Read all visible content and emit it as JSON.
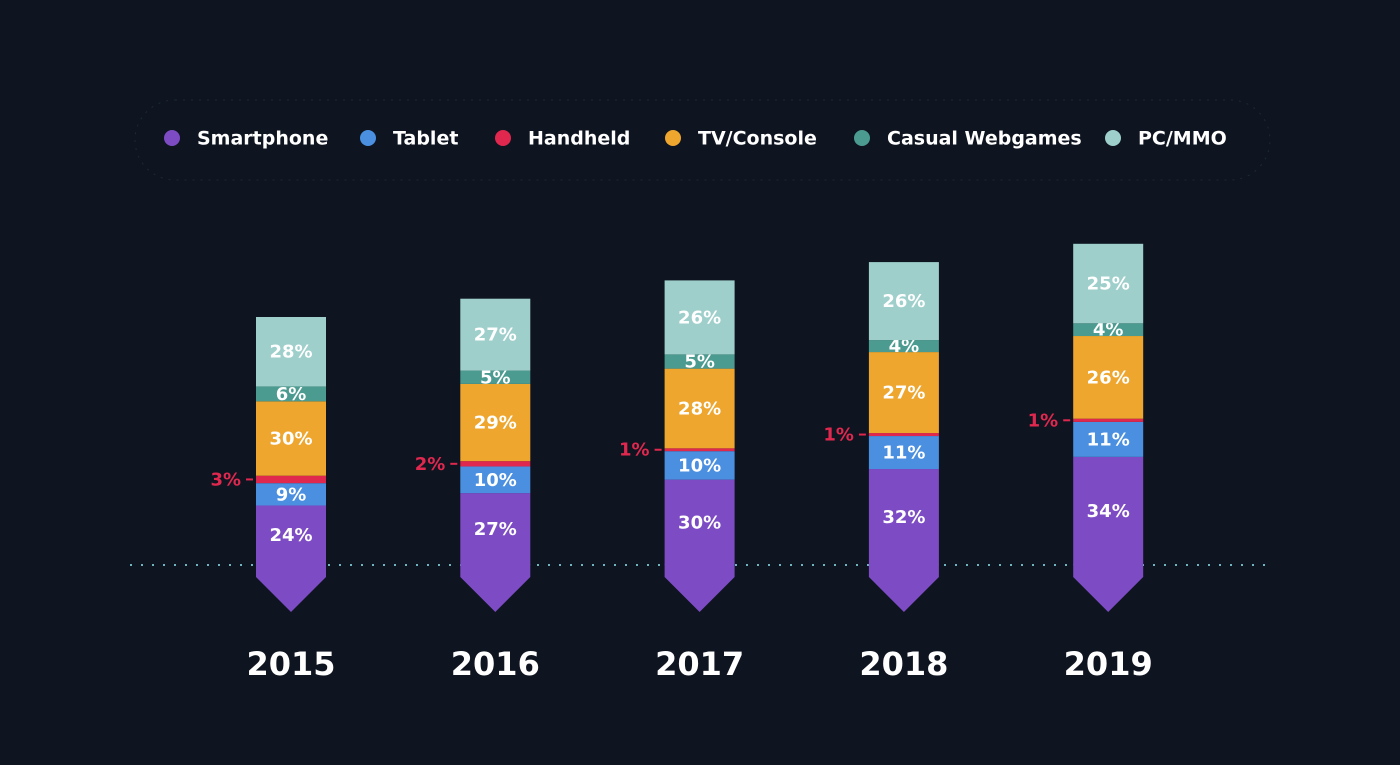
{
  "chart_data": {
    "type": "stacked-bar",
    "categories": [
      "2015",
      "2016",
      "2017",
      "2018",
      "2019"
    ],
    "series": [
      {
        "name": "Smartphone",
        "color": "#7d4cc4",
        "values": [
          24,
          27,
          30,
          32,
          34
        ],
        "value_labels": [
          "24%",
          "27%",
          "30%",
          "32%",
          "34%"
        ]
      },
      {
        "name": "Tablet",
        "color": "#4a8fe0",
        "values": [
          9,
          10,
          10,
          11,
          11
        ],
        "value_labels": [
          "9%",
          "10%",
          "10%",
          "11%",
          "11%"
        ]
      },
      {
        "name": "Handheld",
        "color": "#e0284f",
        "values": [
          3,
          2,
          1,
          1,
          1
        ],
        "value_labels": [
          "3%",
          "2%",
          "1%",
          "1%",
          "1%"
        ]
      },
      {
        "name": "TV/Console",
        "color": "#eea62e",
        "values": [
          30,
          29,
          28,
          27,
          26
        ],
        "value_labels": [
          "30%",
          "29%",
          "28%",
          "27%",
          "26%"
        ]
      },
      {
        "name": "Casual Webgames",
        "color": "#4c9b90",
        "values": [
          6,
          5,
          5,
          4,
          4
        ],
        "value_labels": [
          "6%",
          "5%",
          "5%",
          "4%",
          "4%"
        ]
      },
      {
        "name": "PC/MMO",
        "color": "#9ecfcb",
        "values": [
          28,
          27,
          26,
          26,
          25
        ],
        "value_labels": [
          "28%",
          "27%",
          "26%",
          "26%",
          "25%"
        ]
      }
    ]
  }
}
